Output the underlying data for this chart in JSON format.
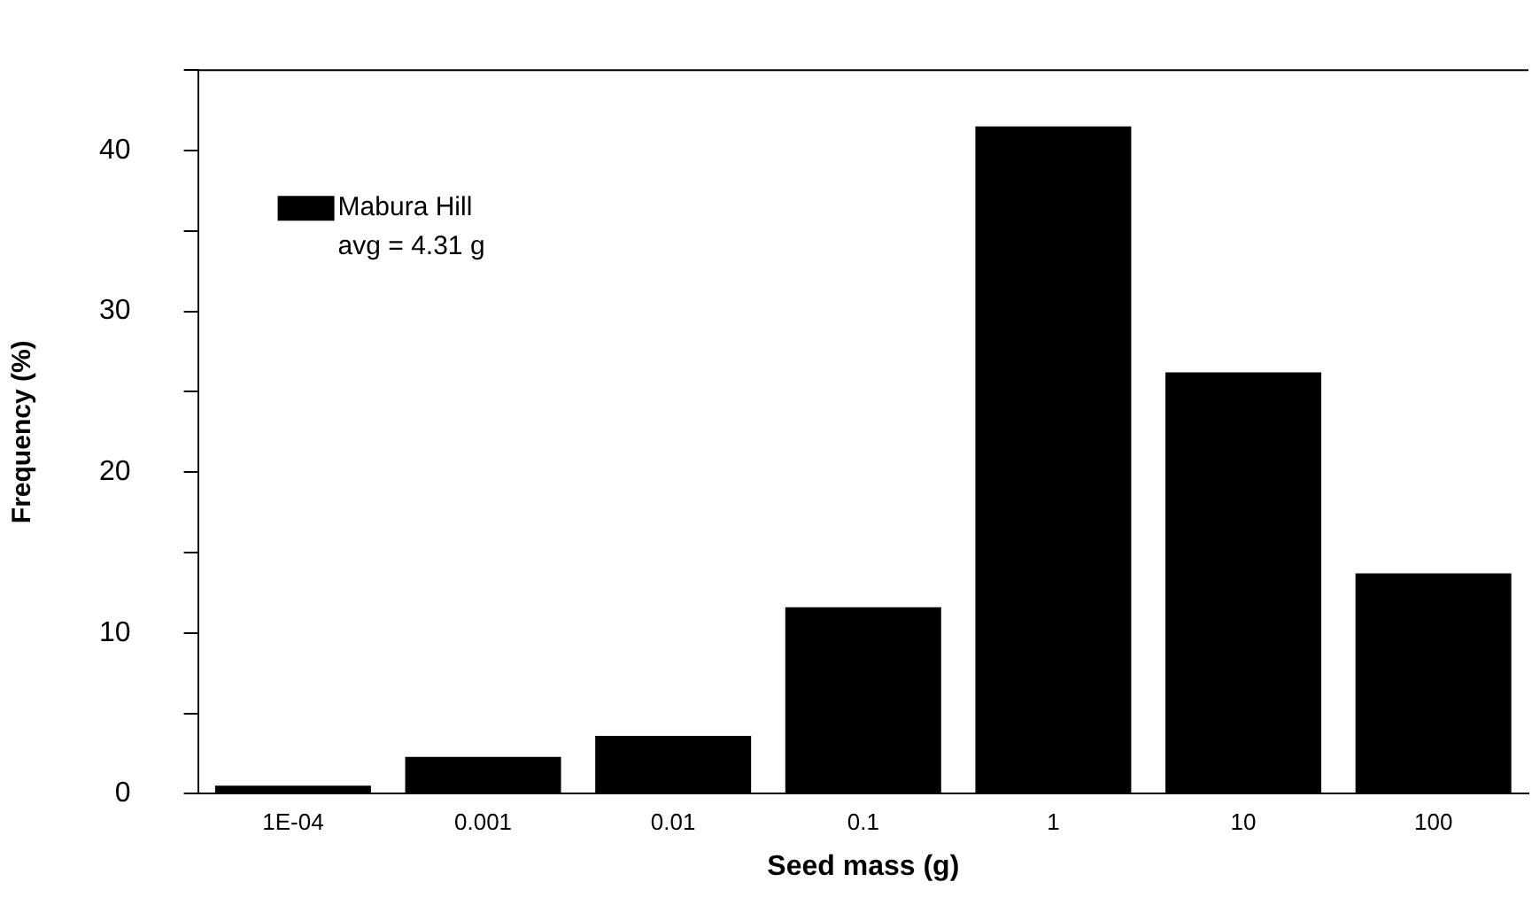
{
  "chart_data": {
    "type": "bar",
    "xlabel": "Seed mass (g)",
    "ylabel": "Frequency (%)",
    "categories": [
      "1E-04",
      "0.001",
      "0.01",
      "0.1",
      "1",
      "10",
      "100"
    ],
    "series": [
      {
        "name": "Mabura Hill",
        "color": "#000000",
        "values": [
          0.5,
          2.3,
          3.6,
          11.6,
          41.5,
          26.2,
          13.7
        ]
      }
    ],
    "ylim": [
      0,
      45
    ],
    "yticks": [
      0,
      {
        "value": 5,
        "label": null
      },
      10,
      {
        "value": 15,
        "label": null
      },
      20,
      {
        "value": 25,
        "label": null
      },
      30,
      {
        "value": 35,
        "label": null
      },
      40,
      {
        "value": 45,
        "label": null
      }
    ],
    "annotations": [
      "avg = 4.31 g"
    ],
    "legend": "top left",
    "grid": false
  }
}
